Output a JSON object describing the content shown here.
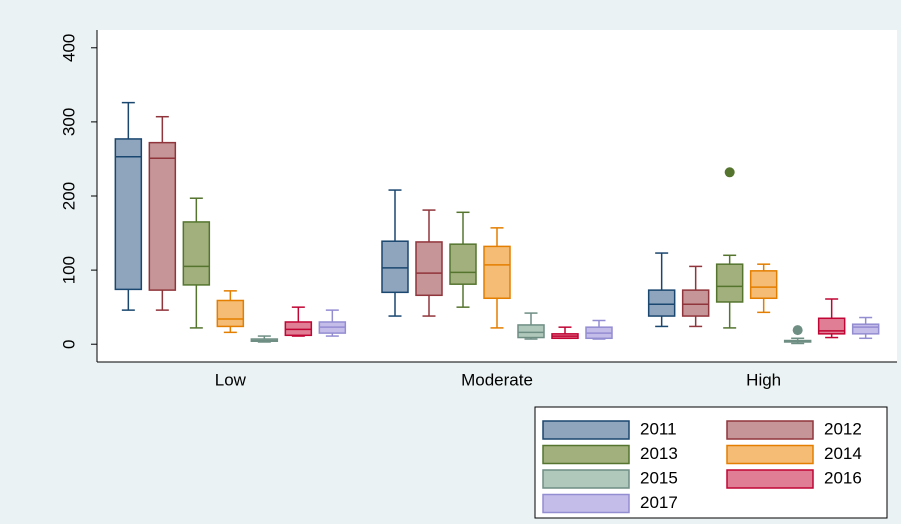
{
  "chart_data": {
    "type": "box",
    "categories": [
      "Low",
      "Moderate",
      "High"
    ],
    "ylim": [
      -24,
      424
    ],
    "yticks": [
      0,
      100,
      200,
      300,
      400
    ],
    "legend": "bottom-right",
    "series": [
      {
        "name": "2011",
        "color": "#8fa4bd",
        "edge": "#1a476f",
        "values": [
          {
            "min": 46,
            "q1": 74,
            "median": 253,
            "q3": 277,
            "max": 326
          },
          {
            "min": 38,
            "q1": 70,
            "median": 103,
            "q3": 139,
            "max": 208
          },
          {
            "min": 24,
            "q1": 38,
            "median": 54,
            "q3": 73,
            "max": 123
          }
        ],
        "outliers": [
          [],
          [],
          []
        ]
      },
      {
        "name": "2012",
        "color": "#c59597",
        "edge": "#90353b",
        "values": [
          {
            "min": 46,
            "q1": 73,
            "median": 251,
            "q3": 272,
            "max": 307
          },
          {
            "min": 38,
            "q1": 66,
            "median": 96,
            "q3": 138,
            "max": 181
          },
          {
            "min": 24,
            "q1": 38,
            "median": 54,
            "q3": 73,
            "max": 105
          }
        ],
        "outliers": [
          [],
          [],
          []
        ]
      },
      {
        "name": "2013",
        "color": "#a1b07c",
        "edge": "#55752f",
        "values": [
          {
            "min": 22,
            "q1": 80,
            "median": 105,
            "q3": 165,
            "max": 197
          },
          {
            "min": 50,
            "q1": 81,
            "median": 97,
            "q3": 135,
            "max": 178
          },
          {
            "min": 22,
            "q1": 57,
            "median": 78,
            "q3": 108,
            "max": 120
          }
        ],
        "outliers": [
          [],
          [],
          [
            232
          ]
        ]
      },
      {
        "name": "2014",
        "color": "#f5bc75",
        "edge": "#e37e00",
        "values": [
          {
            "min": 16,
            "q1": 24,
            "median": 34,
            "q3": 59,
            "max": 72
          },
          {
            "min": 22,
            "q1": 62,
            "median": 107,
            "q3": 132,
            "max": 157
          },
          {
            "min": 43,
            "q1": 62,
            "median": 77,
            "q3": 99,
            "max": 108
          }
        ],
        "outliers": [
          [],
          [],
          []
        ]
      },
      {
        "name": "2015",
        "color": "#b0c8bc",
        "edge": "#6e8e84",
        "values": [
          {
            "min": 3,
            "q1": 4,
            "median": 5,
            "q3": 7,
            "max": 11
          },
          {
            "min": 7,
            "q1": 9,
            "median": 16,
            "q3": 26,
            "max": 42
          },
          {
            "min": 1,
            "q1": 3,
            "median": 4,
            "q3": 5,
            "max": 8
          }
        ],
        "outliers": [
          [],
          [],
          [
            19
          ]
        ]
      },
      {
        "name": "2016",
        "color": "#e07e95",
        "edge": "#c10534",
        "values": [
          {
            "min": 11,
            "q1": 12,
            "median": 20,
            "q3": 30,
            "max": 50
          },
          {
            "min": 8,
            "q1": 8,
            "median": 11,
            "q3": 14,
            "max": 23
          },
          {
            "min": 9,
            "q1": 14,
            "median": 18,
            "q3": 35,
            "max": 61
          }
        ],
        "outliers": [
          [],
          [],
          []
        ]
      },
      {
        "name": "2017",
        "color": "#c5bde9",
        "edge": "#938dd2",
        "values": [
          {
            "min": 11,
            "q1": 15,
            "median": 23,
            "q3": 30,
            "max": 46
          },
          {
            "min": 7,
            "q1": 8,
            "median": 15,
            "q3": 23,
            "max": 32
          },
          {
            "min": 8,
            "q1": 14,
            "median": 23,
            "q3": 27,
            "max": 36
          }
        ],
        "outliers": [
          [],
          [],
          []
        ]
      }
    ]
  }
}
